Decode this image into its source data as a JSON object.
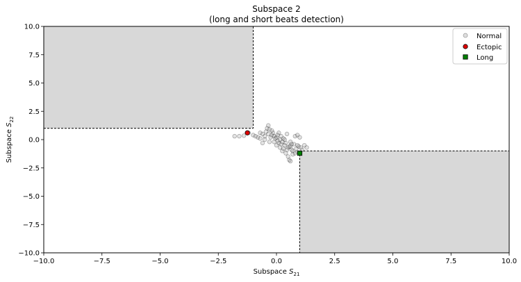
{
  "chart_data": {
    "type": "scatter",
    "title": "Subspace 2",
    "subtitle": "(long and short beats detection)",
    "xlabel_main": "Subspace ",
    "xlabel_sub": "21",
    "ylabel_main": "Subspace ",
    "ylabel_sub": "22",
    "xlim": [
      -10,
      10
    ],
    "ylim": [
      -10,
      10
    ],
    "xticks": [
      -10,
      -7.5,
      -5,
      -2.5,
      0,
      2.5,
      5,
      7.5,
      10
    ],
    "xtick_labels": [
      "−10.0",
      "−7.5",
      "−5.0",
      "−2.5",
      "0.0",
      "2.5",
      "5.0",
      "7.5",
      "10.0"
    ],
    "yticks": [
      -10,
      -7.5,
      -5,
      -2.5,
      0,
      2.5,
      5,
      7.5,
      10
    ],
    "ytick_labels": [
      "−10.0",
      "−7.5",
      "−5.0",
      "−2.5",
      "0.0",
      "2.5",
      "5.0",
      "7.5",
      "10.0"
    ],
    "grid": false,
    "legend_placement": "top-right",
    "regions": [
      {
        "x": [
          -10,
          -1
        ],
        "y": [
          1,
          10
        ],
        "color": "#d8d8d8"
      },
      {
        "x": [
          1,
          10
        ],
        "y": [
          -10,
          -1
        ],
        "color": "#d8d8d8"
      }
    ],
    "series": [
      {
        "name": "Normal",
        "marker": "circle",
        "color": "#808080",
        "points": [
          [
            -1.8,
            0.3
          ],
          [
            -1.6,
            0.3
          ],
          [
            -1.4,
            0.35
          ],
          [
            -1.2,
            0.6
          ],
          [
            -1.0,
            0.4
          ],
          [
            -0.9,
            0.3
          ],
          [
            -0.8,
            0.2
          ],
          [
            -0.7,
            0.1
          ],
          [
            -0.6,
            0.5
          ],
          [
            -0.5,
            0.3
          ],
          [
            -0.45,
            0.7
          ],
          [
            -0.4,
            1.0
          ],
          [
            -0.35,
            1.25
          ],
          [
            -0.3,
            0.9
          ],
          [
            -0.25,
            0.2
          ],
          [
            -0.2,
            0.4
          ],
          [
            -0.15,
            0.6
          ],
          [
            -0.1,
            0.3
          ],
          [
            -0.05,
            0.1
          ],
          [
            0.0,
            0.2
          ],
          [
            0.05,
            -0.1
          ],
          [
            0.1,
            -0.3
          ],
          [
            0.15,
            0.0
          ],
          [
            0.2,
            -0.4
          ],
          [
            0.25,
            -0.2
          ],
          [
            0.3,
            0.1
          ],
          [
            0.35,
            -0.5
          ],
          [
            0.4,
            -0.3
          ],
          [
            0.45,
            0.5
          ],
          [
            0.5,
            -0.7
          ],
          [
            0.55,
            -0.6
          ],
          [
            0.6,
            -0.2
          ],
          [
            0.65,
            -0.9
          ],
          [
            0.7,
            -1.0
          ],
          [
            0.75,
            -0.4
          ],
          [
            0.8,
            0.3
          ],
          [
            0.85,
            -0.8
          ],
          [
            0.9,
            -1.1
          ],
          [
            0.95,
            -0.6
          ],
          [
            1.0,
            0.2
          ],
          [
            1.05,
            -0.7
          ],
          [
            1.1,
            -0.9
          ],
          [
            1.2,
            -0.5
          ],
          [
            1.3,
            -0.7
          ],
          [
            -0.6,
            -0.3
          ],
          [
            -0.3,
            -0.2
          ],
          [
            0.0,
            -0.5
          ],
          [
            0.2,
            0.3
          ],
          [
            0.3,
            -0.8
          ],
          [
            0.4,
            -1.2
          ],
          [
            0.5,
            -1.5
          ],
          [
            0.55,
            -1.8
          ],
          [
            0.6,
            -1.9
          ],
          [
            0.7,
            -1.3
          ],
          [
            0.9,
            -0.5
          ],
          [
            -0.2,
            0.8
          ],
          [
            0.1,
            0.6
          ],
          [
            -0.5,
            0.0
          ],
          [
            -0.1,
            -0.2
          ],
          [
            0.25,
            -1.0
          ],
          [
            0.45,
            -0.9
          ],
          [
            0.65,
            -0.4
          ],
          [
            0.8,
            -1.2
          ],
          [
            0.15,
            -0.7
          ],
          [
            -0.35,
            0.5
          ],
          [
            0.05,
            0.4
          ],
          [
            0.35,
            0.0
          ],
          [
            0.6,
            -0.6
          ],
          [
            0.9,
            0.4
          ],
          [
            -0.7,
            0.6
          ]
        ]
      },
      {
        "name": "Ectopic",
        "marker": "circle",
        "color": "#e00000",
        "points": [
          [
            -1.25,
            0.6
          ]
        ]
      },
      {
        "name": "Long",
        "marker": "square",
        "color": "#008000",
        "points": [
          [
            1.0,
            -1.2
          ]
        ]
      }
    ]
  }
}
